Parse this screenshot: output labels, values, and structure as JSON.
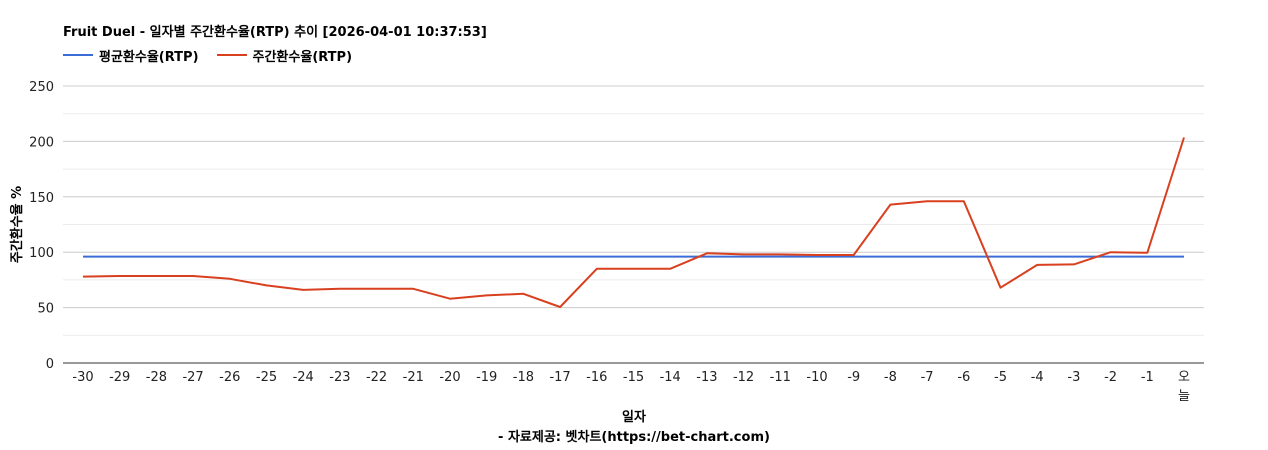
{
  "title": "Fruit Duel - 일자별 주간환수율(RTP) 추이 [2026-04-01 10:37:53]",
  "footer": {
    "xlabel": "일자",
    "source": "- 자료제공: 벳차트(https://bet-chart.com)"
  },
  "colors": {
    "avg": "#3b6bd6",
    "weekly": "#d8401f",
    "grid": "#cccccc",
    "minor_grid": "#ebebeb",
    "axis": "#333333"
  },
  "chart_data": {
    "type": "line",
    "title": "Fruit Duel - 일자별 주간환수율(RTP) 추이 [2026-04-01 10:37:53]",
    "xlabel": "일자",
    "ylabel": "주간환수율 %",
    "ylim": [
      0,
      250
    ],
    "yticks": [
      0,
      50,
      100,
      150,
      200,
      250
    ],
    "grid": true,
    "legend_position": "top-left",
    "categories": [
      "-30",
      "-29",
      "-28",
      "-27",
      "-26",
      "-25",
      "-24",
      "-23",
      "-22",
      "-21",
      "-20",
      "-19",
      "-18",
      "-17",
      "-16",
      "-15",
      "-14",
      "-13",
      "-12",
      "-11",
      "-10",
      "-9",
      "-8",
      "-7",
      "-6",
      "-5",
      "-4",
      "-3",
      "-2",
      "-1",
      "오늘"
    ],
    "series": [
      {
        "name": "평균환수율(RTP)",
        "color": "#3b6bd6",
        "values": [
          96,
          96,
          96,
          96,
          96,
          96,
          96,
          96,
          96,
          96,
          96,
          96,
          96,
          96,
          96,
          96,
          96,
          96,
          96,
          96,
          96,
          96,
          96,
          96,
          96,
          96,
          96,
          96,
          96,
          96,
          96
        ]
      },
      {
        "name": "주간환수율(RTP)",
        "color": "#d8401f",
        "values": [
          78,
          78.5,
          78.5,
          78.5,
          76,
          70,
          66,
          67,
          67,
          67,
          58,
          61,
          62.5,
          50.5,
          85,
          85,
          85,
          99,
          98,
          98,
          97.5,
          97.5,
          143,
          146,
          146,
          68,
          88.5,
          89,
          100,
          99.5,
          203.5
        ]
      }
    ]
  }
}
